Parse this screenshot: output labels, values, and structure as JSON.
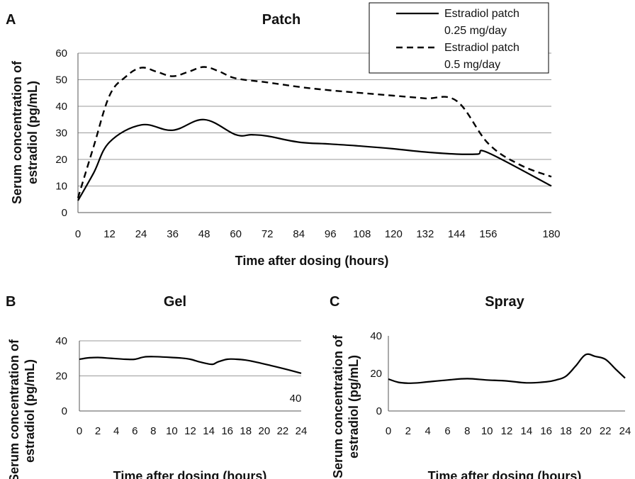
{
  "chart_data": [
    {
      "panel": "A",
      "type": "line",
      "title": "Patch",
      "xlabel": "Time after dosing (hours)",
      "ylabel_lines": [
        "Serum concentration of",
        "estradiol (pg/mL)"
      ],
      "xlim": [
        0,
        180
      ],
      "ylim": [
        0,
        60
      ],
      "x_ticks": [
        0,
        12,
        24,
        36,
        48,
        60,
        72,
        84,
        96,
        108,
        120,
        132,
        144,
        156,
        180
      ],
      "y_ticks": [
        0,
        10,
        20,
        30,
        40,
        50,
        60
      ],
      "grid": true,
      "legend_position": "top-right",
      "series": [
        {
          "name": "Estradiol patch 0.25 mg/day",
          "legend_lines": [
            "Estradiol patch",
            "0.25 mg/day"
          ],
          "style": "solid",
          "x": [
            0,
            6,
            12,
            24,
            36,
            48,
            60,
            66,
            72,
            84,
            96,
            108,
            120,
            132,
            144,
            152,
            156,
            180
          ],
          "y": [
            4.5,
            15,
            26.5,
            33,
            31,
            35,
            29.3,
            29.3,
            28.8,
            26.5,
            25.8,
            25,
            24,
            22.8,
            22,
            22,
            22.5,
            10
          ]
        },
        {
          "name": "Estradiol patch 0.5 mg/day",
          "legend_lines": [
            "Estradiol patch",
            "0.5 mg/day"
          ],
          "style": "dashed",
          "x": [
            0,
            6,
            12,
            18,
            24,
            30,
            36,
            42,
            48,
            54,
            60,
            72,
            84,
            96,
            108,
            120,
            132,
            144,
            156,
            168,
            180
          ],
          "y": [
            5.5,
            25,
            44,
            51,
            54.5,
            53,
            51.3,
            53,
            54.8,
            53,
            50.5,
            49,
            47.3,
            46,
            45,
            44,
            43,
            42,
            26,
            18,
            13.5
          ]
        }
      ]
    },
    {
      "panel": "B",
      "type": "line",
      "title": "Gel",
      "xlabel": "Time after dosing (hours)",
      "ylabel_lines": [
        "Serum concentration of",
        "estradiol (pg/mL)"
      ],
      "xlim": [
        0,
        24
      ],
      "ylim": [
        0,
        40
      ],
      "x_ticks": [
        0,
        2,
        4,
        6,
        8,
        10,
        12,
        14,
        16,
        18,
        20,
        22,
        24
      ],
      "y_ticks": [
        0,
        20,
        40
      ],
      "grid": true,
      "annotation": "40",
      "series": [
        {
          "name": "Gel",
          "style": "solid",
          "x": [
            0,
            1,
            2,
            3,
            4,
            5,
            6,
            7,
            8,
            9,
            10,
            11,
            12,
            13,
            14,
            14.5,
            15,
            16,
            17,
            18,
            19,
            20,
            22,
            24
          ],
          "y": [
            29.5,
            30.3,
            30.5,
            30.2,
            29.8,
            29.5,
            29.5,
            30.8,
            31,
            30.8,
            30.5,
            30.2,
            29.5,
            28,
            26.8,
            26.7,
            28,
            29.5,
            29.5,
            29,
            28,
            26.8,
            24.3,
            21.5
          ]
        }
      ]
    },
    {
      "panel": "C",
      "type": "line",
      "title": "Spray",
      "xlabel": "Time after dosing (hours)",
      "ylabel_lines": [
        "Serum concentration of",
        "estradiol (pg/mL)"
      ],
      "xlim": [
        0,
        24
      ],
      "ylim": [
        0,
        40
      ],
      "x_ticks": [
        0,
        2,
        4,
        6,
        8,
        10,
        12,
        14,
        16,
        18,
        20,
        22,
        24
      ],
      "y_ticks": [
        0,
        20,
        40
      ],
      "grid": false,
      "series": [
        {
          "name": "Spray",
          "style": "solid",
          "x": [
            0,
            1,
            2,
            3,
            4,
            6,
            8,
            10,
            12,
            14,
            16,
            17,
            18,
            19,
            20,
            21,
            22,
            23,
            24
          ],
          "y": [
            17,
            15.3,
            14.8,
            15,
            15.5,
            16.5,
            17.2,
            16.5,
            16,
            15,
            15.5,
            16.5,
            18.5,
            24,
            30,
            29,
            27.5,
            22.5,
            17.5
          ]
        }
      ]
    }
  ]
}
